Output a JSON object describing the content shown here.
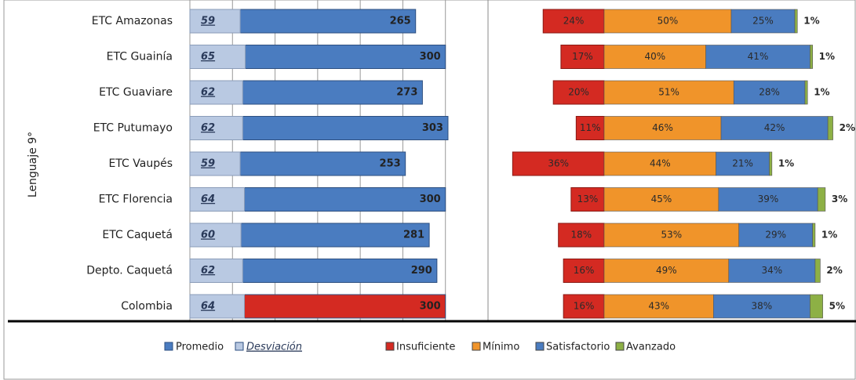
{
  "chart_data": [
    {
      "type": "overlap_bar",
      "y_label": "Lenguaje 9°",
      "categories": [
        "ETC Amazonas",
        "ETC Guainía",
        "ETC Guaviare",
        "ETC Putumayo",
        "ETC Vaupés",
        "ETC Florencia",
        "ETC Caquetá",
        "Depto. Caquetá",
        "Colombia"
      ],
      "xlim": [
        0,
        350
      ],
      "xticks": [
        0,
        50,
        100,
        150,
        200,
        250,
        300
      ],
      "grid": true,
      "series": [
        {
          "name": "Promedio",
          "color": "#4a7cc0",
          "colors": [
            "#4a7cc0",
            "#4a7cc0",
            "#4a7cc0",
            "#4a7cc0",
            "#4a7cc0",
            "#4a7cc0",
            "#4a7cc0",
            "#4a7cc0",
            "#d42a22"
          ],
          "values": [
            265,
            300,
            273,
            303,
            253,
            300,
            281,
            290,
            300
          ]
        },
        {
          "name": "Desviación",
          "color": "#b9c9e2",
          "values": [
            59,
            65,
            62,
            62,
            59,
            64,
            60,
            62,
            64
          ]
        }
      ]
    },
    {
      "type": "diverging_bar",
      "series": [
        {
          "name": "Insuficiente",
          "color": "#d42a22",
          "values": [
            24,
            17,
            20,
            11,
            36,
            13,
            18,
            16,
            16
          ],
          "value_labels": [
            "24%",
            "17%",
            "20%",
            "11%",
            "36%",
            "13%",
            "18%",
            "16%",
            "16%"
          ]
        },
        {
          "name": "Mínimo",
          "color": "#f0942a",
          "values": [
            50,
            40,
            51,
            46,
            44,
            45,
            53,
            49,
            43
          ],
          "value_labels": [
            "50%",
            "40%",
            "51%",
            "46%",
            "44%",
            "45%",
            "53%",
            "49%",
            "43%"
          ]
        },
        {
          "name": "Satisfactorio",
          "color": "#4a7cc0",
          "values": [
            25,
            41,
            28,
            42,
            21,
            39,
            29,
            34,
            38
          ],
          "value_labels": [
            "25%",
            "41%",
            "28%",
            "42%",
            "21%",
            "39%",
            "29%",
            "34%",
            "38%"
          ]
        },
        {
          "name": "Avanzado",
          "color": "#8db045",
          "values": [
            1,
            1,
            1,
            2,
            1,
            3,
            1,
            2,
            5
          ],
          "value_labels": [
            "1%",
            "1%",
            "1%",
            "2%",
            "1%",
            "3%",
            "1%",
            "2%",
            "5%"
          ]
        }
      ]
    }
  ]
}
